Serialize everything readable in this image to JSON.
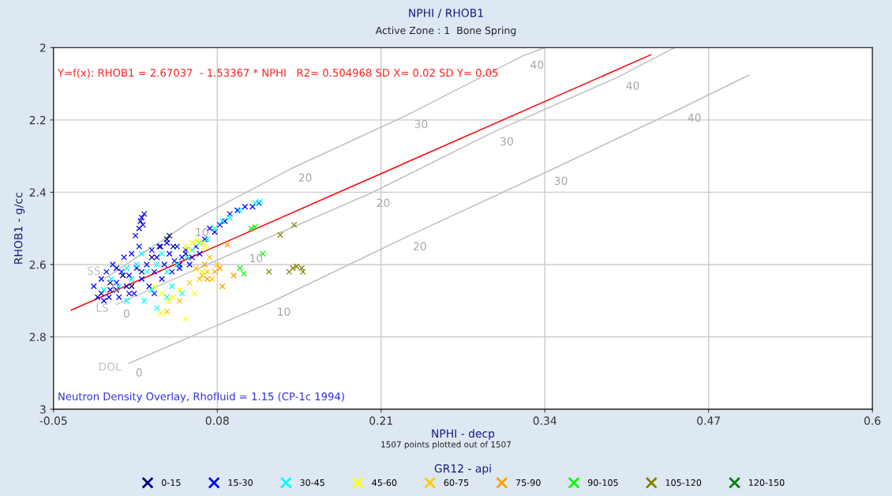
{
  "chart_data": {
    "type": "scatter",
    "title": "NPHI / RHOB1",
    "subtitle": "Active Zone : 1  Bone Spring",
    "xlabel": "NPHI - decp",
    "ylabel": "RHOB1 - g/cc",
    "legend_title": "GR12 - api",
    "legend": "bottom",
    "marker": "cross",
    "grid": true,
    "xlim": [
      -0.05,
      0.6
    ],
    "xticks": [
      -0.05,
      0.08,
      0.21,
      0.34,
      0.47,
      0.6
    ],
    "ylim": [
      3,
      2
    ],
    "yticks": [
      2,
      2.2,
      2.4,
      2.6,
      2.8,
      3
    ],
    "annotations": [
      "Y=f(x): RHOB1 = 2.67037  - 1.53367 * NPHI   R2= 0.504968 SD X= 0.02 SD Y= 0.05",
      "Neutron Density Overlay, Rhofluid = 1.15 (CP-1c 1994)",
      "1507 points plotted out of 1507",
      {
        "text": "0",
        "x": -0.009,
        "y": 2.638
      },
      {
        "text": "10",
        "x": 0.057,
        "y": 2.485
      },
      {
        "text": "20",
        "x": 0.139,
        "y": 2.334
      },
      {
        "text": "30",
        "x": 0.231,
        "y": 2.186
      },
      {
        "text": "40",
        "x": 0.323,
        "y": 2.022
      },
      {
        "text": "0",
        "x": 0.0,
        "y": 2.71
      },
      {
        "text": "10",
        "x": 0.1,
        "y": 2.557
      },
      {
        "text": "20",
        "x": 0.201,
        "y": 2.404
      },
      {
        "text": "30",
        "x": 0.299,
        "y": 2.234
      },
      {
        "text": "40",
        "x": 0.399,
        "y": 2.08
      },
      {
        "text": "0",
        "x": 0.01,
        "y": 2.873
      },
      {
        "text": "10",
        "x": 0.122,
        "y": 2.705
      },
      {
        "text": "20",
        "x": 0.23,
        "y": 2.524
      },
      {
        "text": "30",
        "x": 0.342,
        "y": 2.343
      },
      {
        "text": "40",
        "x": 0.448,
        "y": 2.168
      }
    ],
    "series": [
      {
        "type": "line",
        "marker": "none",
        "name": "SS",
        "color": "#c0c0c0",
        "x": [
          -0.009,
          0.057,
          0.139,
          0.231,
          0.323,
          0.34
        ],
        "values": [
          2.638,
          2.485,
          2.334,
          2.186,
          2.022,
          2.0
        ]
      },
      {
        "type": "line",
        "marker": "none",
        "name": "LS",
        "color": "#c0c0c0",
        "x": [
          0.0,
          0.1,
          0.201,
          0.299,
          0.399,
          0.443
        ],
        "values": [
          2.71,
          2.557,
          2.404,
          2.234,
          2.08,
          2.0
        ]
      },
      {
        "type": "line",
        "marker": "none",
        "name": "DOL",
        "color": "#c0c0c0",
        "x": [
          0.01,
          0.122,
          0.23,
          0.342,
          0.448,
          0.502
        ],
        "values": [
          2.873,
          2.705,
          2.524,
          2.343,
          2.168,
          2.076
        ]
      },
      {
        "type": "line",
        "marker": "none",
        "color": "#ff0000",
        "x": [
          -0.036,
          0.424
        ],
        "values": [
          2.726,
          2.02
        ]
      },
      {
        "name": "0-15",
        "color": "#00007f",
        "x": [
          -0.005,
          0.0,
          0.005,
          0.012,
          0.02,
          0.028,
          0.035,
          0.04,
          0.042,
          0.045,
          0.05,
          0.055,
          -0.012
        ],
        "values": [
          2.65,
          2.67,
          2.63,
          2.66,
          2.62,
          2.58,
          2.55,
          2.53,
          2.52,
          2.55,
          2.6,
          2.57,
          2.68
        ]
      },
      {
        "name": "15-30",
        "color": "#0000ff",
        "x": [
          -0.018,
          -0.015,
          -0.012,
          -0.01,
          -0.008,
          -0.005,
          -0.003,
          0.0,
          0.002,
          0.004,
          0.006,
          0.008,
          0.01,
          0.012,
          0.014,
          0.016,
          0.018,
          0.02,
          0.019,
          0.02,
          0.021,
          0.018,
          0.022,
          0.015,
          0.024,
          0.026,
          0.028,
          0.03,
          0.032,
          0.034,
          0.036,
          0.038,
          0.04,
          0.042,
          0.044,
          0.046,
          0.048,
          0.05,
          0.052,
          0.055,
          0.058,
          0.06,
          0.063,
          0.066,
          0.07,
          0.074,
          0.078,
          0.082,
          0.086,
          0.09,
          0.096,
          0.102,
          0.108,
          0.113,
          0.01,
          0.0,
          -0.006,
          0.03
        ],
        "values": [
          2.66,
          2.69,
          2.64,
          2.7,
          2.62,
          2.67,
          2.6,
          2.65,
          2.69,
          2.62,
          2.58,
          2.66,
          2.63,
          2.57,
          2.68,
          2.61,
          2.55,
          2.64,
          2.48,
          2.47,
          2.49,
          2.5,
          2.46,
          2.52,
          2.6,
          2.66,
          2.56,
          2.62,
          2.58,
          2.55,
          2.64,
          2.6,
          2.54,
          2.57,
          2.62,
          2.59,
          2.55,
          2.61,
          2.58,
          2.56,
          2.6,
          2.58,
          2.55,
          2.57,
          2.53,
          2.5,
          2.51,
          2.49,
          2.48,
          2.46,
          2.45,
          2.44,
          2.44,
          2.43,
          2.68,
          2.61,
          2.69,
          2.68
        ]
      },
      {
        "name": "30-45",
        "color": "#00ffff",
        "x": [
          -0.01,
          -0.004,
          0.002,
          0.008,
          0.012,
          0.016,
          0.02,
          0.024,
          0.028,
          0.032,
          0.036,
          0.04,
          0.044,
          0.048,
          0.052,
          0.056,
          0.06,
          0.066,
          0.072,
          0.078,
          0.084,
          0.09,
          0.098,
          0.11,
          0.114,
          0.008,
          0.022,
          0.032,
          0.04
        ],
        "values": [
          2.67,
          2.64,
          2.66,
          2.61,
          2.64,
          2.6,
          2.57,
          2.62,
          2.67,
          2.6,
          2.57,
          2.62,
          2.66,
          2.6,
          2.68,
          2.58,
          2.56,
          2.54,
          2.53,
          2.5,
          2.48,
          2.47,
          2.45,
          2.43,
          2.425,
          2.7,
          2.7,
          2.72,
          2.69
        ]
      },
      {
        "name": "45-60",
        "color": "#ffff00",
        "x": [
          0.055,
          0.06,
          0.064,
          0.068,
          0.07,
          0.058,
          0.03,
          0.036,
          0.045,
          0.05,
          0.041,
          0.035,
          0.055,
          0.062,
          0.068
        ],
        "values": [
          2.55,
          2.54,
          2.535,
          2.54,
          2.55,
          2.56,
          2.66,
          2.68,
          2.69,
          2.67,
          2.7,
          2.735,
          2.75,
          2.68,
          2.62
        ]
      },
      {
        "name": "60-75",
        "color": "#ffc800",
        "x": [
          0.063,
          0.068,
          0.072,
          0.076,
          0.08,
          0.058,
          0.05,
          0.04,
          0.074,
          0.066
        ],
        "values": [
          2.61,
          2.63,
          2.62,
          2.64,
          2.6,
          2.65,
          2.7,
          2.73,
          2.58,
          2.64
        ]
      },
      {
        "name": "75-90",
        "color": "#ffa000",
        "x": [
          0.072,
          0.078,
          0.082,
          0.088,
          0.093,
          0.084,
          0.07
        ],
        "values": [
          2.64,
          2.62,
          2.61,
          2.545,
          2.63,
          2.66,
          2.6
        ]
      },
      {
        "name": "90-105",
        "color": "#00ff00",
        "x": [
          0.107,
          0.11,
          0.116,
          0.098,
          0.101
        ],
        "values": [
          2.5,
          2.495,
          2.57,
          2.61,
          2.625
        ]
      },
      {
        "name": "105-120",
        "color": "#808000",
        "x": [
          0.13,
          0.141,
          0.121,
          0.137,
          0.14,
          0.143,
          0.147,
          0.148
        ],
        "values": [
          2.518,
          2.49,
          2.62,
          2.62,
          2.61,
          2.605,
          2.61,
          2.62
        ]
      },
      {
        "name": "120-150",
        "color": "#008000"
      }
    ]
  }
}
